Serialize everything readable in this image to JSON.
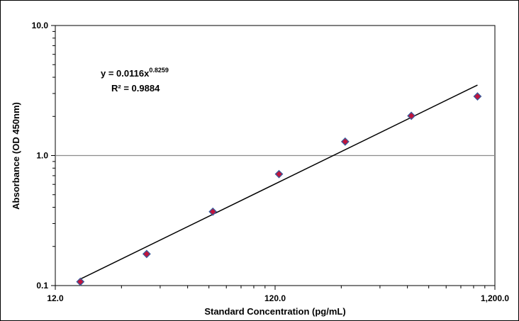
{
  "chart_data": {
    "type": "scatter",
    "title": "",
    "xlabel": "Standard Concentration (pg/mL)",
    "ylabel": "Absorbance (OD 450nm)",
    "xscale": "log",
    "yscale": "log",
    "xlim": [
      12.0,
      1200.0
    ],
    "ylim": [
      0.1,
      10.0
    ],
    "x_ticks": [
      "12.0",
      "120.0",
      "1,200.0"
    ],
    "y_ticks": [
      "0.1",
      "1.0",
      "10.0"
    ],
    "grid": "horizontal major gridline at 1.0",
    "marker_color": "#C0143C",
    "marker_edge_color": "#3A5A9A",
    "series": [
      {
        "x": [
          15.6,
          31.25,
          62.5,
          125.0,
          250.0,
          500.0,
          1000.0
        ],
        "y": [
          0.107,
          0.175,
          0.37,
          0.72,
          1.28,
          2.02,
          2.85
        ]
      }
    ],
    "trendline": {
      "type": "power",
      "a": 0.0116,
      "b": 0.8259,
      "equation_prefix": "y = 0.0116x",
      "equation_exponent": "0.8259",
      "r2_text": "R² = 0.9884"
    }
  }
}
